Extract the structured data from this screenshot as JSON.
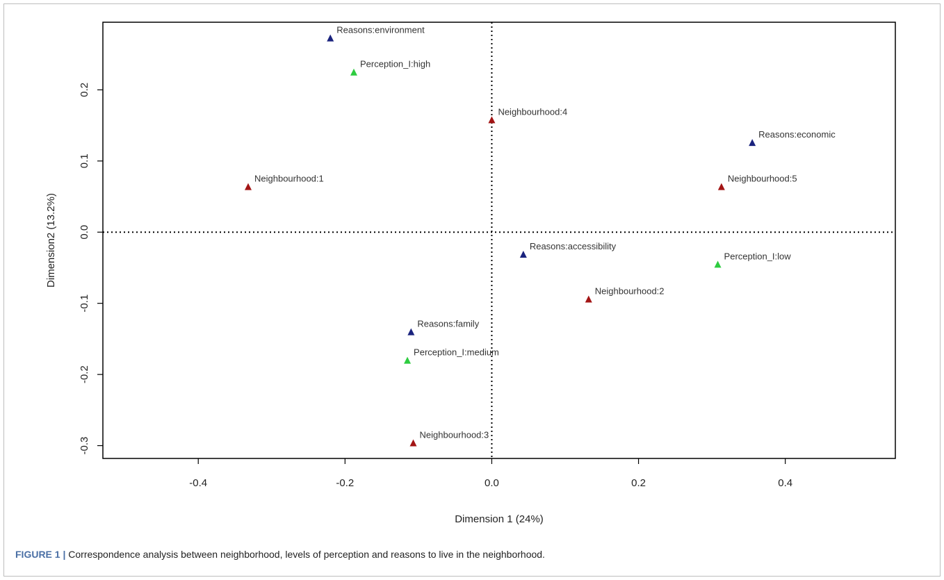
{
  "chart_data": {
    "type": "scatter",
    "xlabel": "Dimension 1 (24%)",
    "ylabel": "Dimension2 (13.2%)",
    "xlim": [
      -0.53,
      0.55
    ],
    "ylim": [
      -0.318,
      0.295
    ],
    "x_ticks": [
      {
        "value": -0.4,
        "label": "-0.4"
      },
      {
        "value": -0.2,
        "label": "-0.2"
      },
      {
        "value": 0.0,
        "label": "0.0"
      },
      {
        "value": 0.2,
        "label": "0.2"
      },
      {
        "value": 0.4,
        "label": "0.4"
      }
    ],
    "y_ticks": [
      {
        "value": 0.2,
        "label": "0.2"
      },
      {
        "value": 0.1,
        "label": "0.1"
      },
      {
        "value": 0.0,
        "label": "0.0"
      },
      {
        "value": -0.1,
        "label": "-0.1"
      },
      {
        "value": -0.2,
        "label": "-0.2"
      },
      {
        "value": -0.3,
        "label": "-0.3"
      }
    ],
    "reference_lines": {
      "x": 0,
      "y": 0,
      "style": "dotted"
    },
    "grid": false,
    "points": [
      {
        "label": "Reasons:environment",
        "x": -0.22,
        "y": 0.272,
        "group": "reasons",
        "color": "#1a237e"
      },
      {
        "label": "Perception_I:high",
        "x": -0.188,
        "y": 0.224,
        "group": "perception",
        "color": "#2ecc40"
      },
      {
        "label": "Neighbourhood:4",
        "x": 0.0,
        "y": 0.157,
        "group": "neighbourhood",
        "color": "#a31515"
      },
      {
        "label": "Reasons:economic",
        "x": 0.355,
        "y": 0.125,
        "group": "reasons",
        "color": "#1a237e"
      },
      {
        "label": "Neighbourhood:1",
        "x": -0.332,
        "y": 0.063,
        "group": "neighbourhood",
        "color": "#a31515"
      },
      {
        "label": "Neighbourhood:5",
        "x": 0.313,
        "y": 0.063,
        "group": "neighbourhood",
        "color": "#a31515"
      },
      {
        "label": "Reasons:accessibility",
        "x": 0.043,
        "y": -0.032,
        "group": "reasons",
        "color": "#1a237e"
      },
      {
        "label": "Perception_I:low",
        "x": 0.308,
        "y": -0.046,
        "group": "perception",
        "color": "#2ecc40"
      },
      {
        "label": "Neighbourhood:2",
        "x": 0.132,
        "y": -0.095,
        "group": "neighbourhood",
        "color": "#a31515"
      },
      {
        "label": "Reasons:family",
        "x": -0.11,
        "y": -0.141,
        "group": "reasons",
        "color": "#1a237e"
      },
      {
        "label": "Perception_I:medium",
        "x": -0.115,
        "y": -0.181,
        "group": "perception",
        "color": "#2ecc40"
      },
      {
        "label": "Neighbourhood:3",
        "x": -0.107,
        "y": -0.297,
        "group": "neighbourhood",
        "color": "#a31515"
      }
    ]
  },
  "caption": {
    "figure_label": "FIGURE 1 |",
    "text": " Correspondence analysis between neighborhood, levels of perception and reasons to live in the neighborhood."
  }
}
